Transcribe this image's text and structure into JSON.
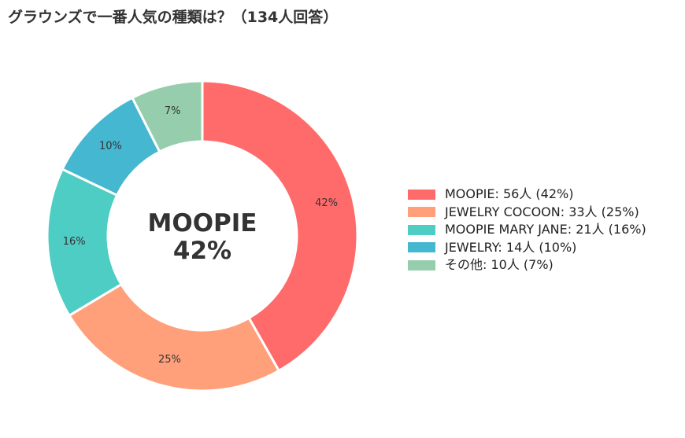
{
  "chart_data": {
    "type": "pie",
    "variant": "donut",
    "title": "グラウンズで一番人気の種類は？（134人回答）",
    "center_label": {
      "name": "MOOPIE",
      "percent": "42%"
    },
    "unit": "人",
    "slices": [
      {
        "name": "MOOPIE",
        "value": 56,
        "percent_label": "42%",
        "color": "#ff6b6b",
        "legend_label": "MOOPIE:  56人 (42%)"
      },
      {
        "name": "JEWELRY COCOON",
        "value": 33,
        "percent_label": "25%",
        "color": "#ffa07a",
        "legend_label": "JEWELRY COCOON:  33人 (25%)"
      },
      {
        "name": "MOOPIE MARY JANE",
        "value": 21,
        "percent_label": "16%",
        "color": "#4ecdc4",
        "legend_label": "MOOPIE MARY JANE:  21人 (16%)"
      },
      {
        "name": "JEWELRY",
        "value": 14,
        "percent_label": "10%",
        "color": "#45b7d1",
        "legend_label": "JEWELRY:  14人 (10%)"
      },
      {
        "name": "その他",
        "value": 10,
        "percent_label": "7%",
        "color": "#96cead",
        "legend_label": "その他:  10人 (7%)"
      }
    ],
    "legend_position": "right"
  }
}
